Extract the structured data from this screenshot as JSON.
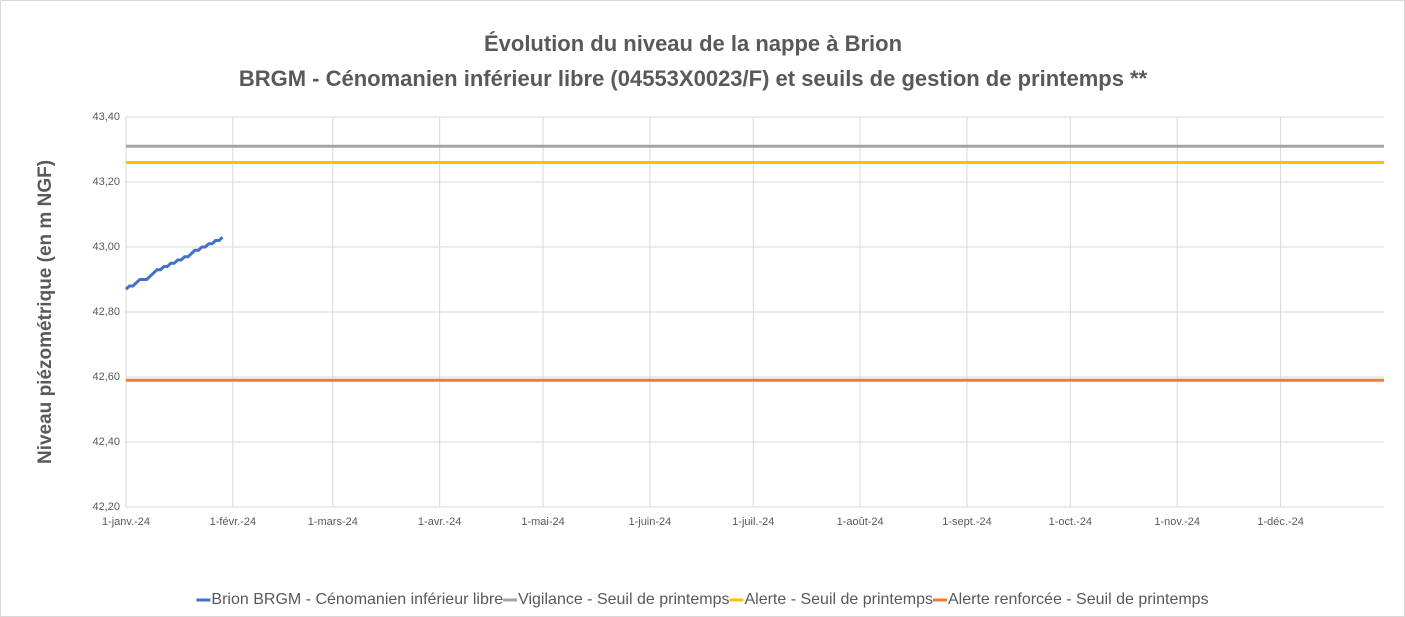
{
  "chart_data": {
    "type": "line",
    "title": "Évolution du niveau de la nappe à Brion",
    "subtitle": "BRGM - Cénomanien inférieur libre (04553X0023/F) et seuils de gestion de printemps **",
    "y_label": "Niveau piézométrique (en m NGF)",
    "xlim": [
      "2024-01-01",
      "2024-12-31"
    ],
    "xticks": [
      {
        "value": "2024-01-01",
        "label": "1-janv.-24"
      },
      {
        "value": "2024-02-01",
        "label": "1-févr.-24"
      },
      {
        "value": "2024-03-01",
        "label": "1-mars-24"
      },
      {
        "value": "2024-04-01",
        "label": "1-avr.-24"
      },
      {
        "value": "2024-05-01",
        "label": "1-mai-24"
      },
      {
        "value": "2024-06-01",
        "label": "1-juin-24"
      },
      {
        "value": "2024-07-01",
        "label": "1-juil.-24"
      },
      {
        "value": "2024-08-01",
        "label": "1-août-24"
      },
      {
        "value": "2024-09-01",
        "label": "1-sept.-24"
      },
      {
        "value": "2024-10-01",
        "label": "1-oct.-24"
      },
      {
        "value": "2024-11-01",
        "label": "1-nov.-24"
      },
      {
        "value": "2024-12-01",
        "label": "1-déc.-24"
      }
    ],
    "ylim": [
      42.2,
      43.4
    ],
    "yticks": [
      {
        "value": 42.2,
        "label": "42,20"
      },
      {
        "value": 42.4,
        "label": "42,40"
      },
      {
        "value": 42.6,
        "label": "42,60"
      },
      {
        "value": 42.8,
        "label": "42,80"
      },
      {
        "value": 43.0,
        "label": "43,00"
      },
      {
        "value": 43.2,
        "label": "43,20"
      },
      {
        "value": 43.4,
        "label": "43,40"
      }
    ],
    "grid": true,
    "legend": "bottom",
    "series": [
      {
        "name": "Brion BRGM - Cénomanien inférieur libre",
        "color": "#4472c4",
        "x": [
          "2024-01-01",
          "2024-01-02",
          "2024-01-03",
          "2024-01-04",
          "2024-01-05",
          "2024-01-06",
          "2024-01-07",
          "2024-01-08",
          "2024-01-09",
          "2024-01-10",
          "2024-01-11",
          "2024-01-12",
          "2024-01-13",
          "2024-01-14",
          "2024-01-15",
          "2024-01-16",
          "2024-01-17",
          "2024-01-18",
          "2024-01-19",
          "2024-01-20",
          "2024-01-21",
          "2024-01-22",
          "2024-01-23",
          "2024-01-24",
          "2024-01-25",
          "2024-01-26",
          "2024-01-27",
          "2024-01-28",
          "2024-01-29"
        ],
        "values": [
          42.87,
          42.88,
          42.88,
          42.89,
          42.9,
          42.9,
          42.9,
          42.91,
          42.92,
          42.93,
          42.93,
          42.94,
          42.94,
          42.95,
          42.95,
          42.96,
          42.96,
          42.97,
          42.97,
          42.98,
          42.99,
          42.99,
          43.0,
          43.0,
          43.01,
          43.01,
          43.02,
          43.02,
          43.03
        ]
      },
      {
        "name": "Vigilance - Seuil de printemps",
        "color": "#a5a5a5",
        "x": [
          "2024-01-01",
          "2024-12-31"
        ],
        "values": [
          43.31,
          43.31
        ]
      },
      {
        "name": "Alerte - Seuil de printemps",
        "color": "#ffc000",
        "x": [
          "2024-01-01",
          "2024-12-31"
        ],
        "values": [
          43.26,
          43.26
        ]
      },
      {
        "name": "Alerte renforcée - Seuil de printemps",
        "color": "#ed7d31",
        "x": [
          "2024-01-01",
          "2024-12-31"
        ],
        "values": [
          42.59,
          42.59
        ]
      }
    ]
  }
}
